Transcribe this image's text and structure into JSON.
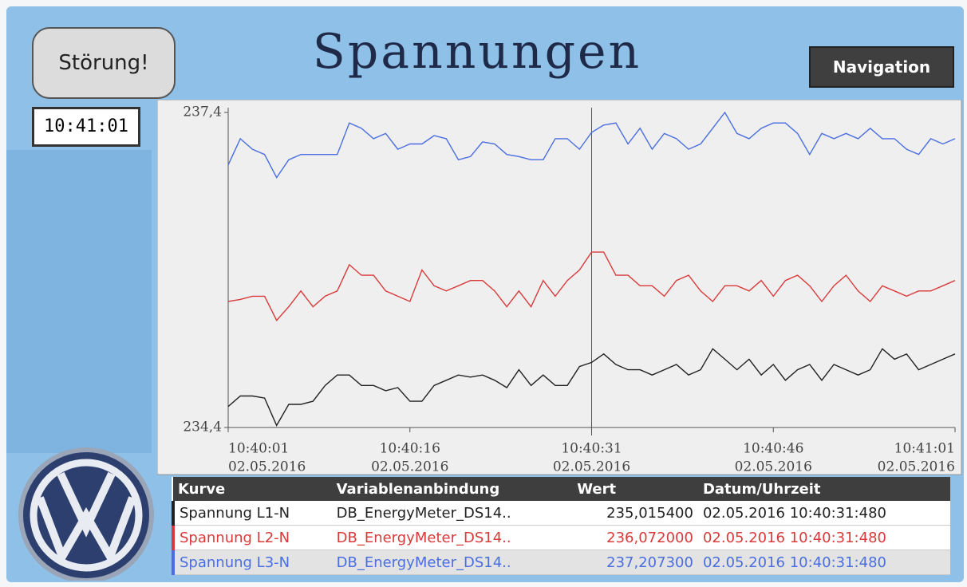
{
  "header": {
    "alarm_button": "Störung!",
    "title": "Spannungen",
    "nav_button": "Navigation",
    "clock": "10:41:01"
  },
  "chart_data": {
    "type": "line",
    "x": [
      "10:40:01",
      "10:40:02",
      "10:40:03",
      "10:40:04",
      "10:40:05",
      "10:40:06",
      "10:40:07",
      "10:40:08",
      "10:40:09",
      "10:40:10",
      "10:40:11",
      "10:40:12",
      "10:40:13",
      "10:40:14",
      "10:40:15",
      "10:40:16",
      "10:40:17",
      "10:40:18",
      "10:40:19",
      "10:40:20",
      "10:40:21",
      "10:40:22",
      "10:40:23",
      "10:40:24",
      "10:40:25",
      "10:40:26",
      "10:40:27",
      "10:40:28",
      "10:40:29",
      "10:40:30",
      "10:40:31",
      "10:40:32",
      "10:40:33",
      "10:40:34",
      "10:40:35",
      "10:40:36",
      "10:40:37",
      "10:40:38",
      "10:40:39",
      "10:40:40",
      "10:40:41",
      "10:40:42",
      "10:40:43",
      "10:40:44",
      "10:40:45",
      "10:40:46",
      "10:40:47",
      "10:40:48",
      "10:40:49",
      "10:40:50",
      "10:40:51",
      "10:40:52",
      "10:40:53",
      "10:40:54",
      "10:40:55",
      "10:40:56",
      "10:40:57",
      "10:40:58",
      "10:40:59",
      "10:41:00",
      "10:41:01"
    ],
    "xticks": [
      "10:40:01",
      "10:40:16",
      "10:40:31",
      "10:40:46",
      "10:41:01"
    ],
    "xtick_dates": [
      "02.05.2016",
      "02.05.2016",
      "02.05.2016",
      "02.05.2016",
      "02.05.2016"
    ],
    "ylim": [
      234.4,
      237.4
    ],
    "yticks": [
      {
        "value": 234.4,
        "label": "234,4"
      },
      {
        "value": 237.4,
        "label": "237,4"
      }
    ],
    "series": [
      {
        "name": "Spannung L1-N",
        "color": "#222222",
        "values": [
          234.6,
          234.7,
          234.7,
          234.68,
          234.42,
          234.62,
          234.62,
          234.65,
          234.8,
          234.9,
          234.9,
          234.8,
          234.8,
          234.75,
          234.78,
          234.65,
          234.65,
          234.8,
          234.85,
          234.9,
          234.88,
          234.9,
          234.85,
          234.78,
          234.95,
          234.8,
          234.9,
          234.8,
          234.8,
          234.98,
          235.02,
          235.1,
          235.0,
          234.95,
          234.95,
          234.9,
          234.95,
          235.0,
          234.9,
          234.95,
          235.15,
          235.05,
          234.95,
          235.05,
          234.9,
          235.0,
          234.85,
          234.95,
          235.0,
          234.85,
          235.0,
          234.95,
          234.9,
          234.95,
          235.15,
          235.05,
          235.1,
          234.95,
          235.0,
          235.05,
          235.1
        ]
      },
      {
        "name": "Spannung L2-N",
        "color": "#d93a3a",
        "values": [
          235.6,
          235.62,
          235.65,
          235.65,
          235.42,
          235.55,
          235.7,
          235.55,
          235.65,
          235.7,
          235.95,
          235.85,
          235.85,
          235.7,
          235.65,
          235.6,
          235.9,
          235.75,
          235.7,
          235.75,
          235.8,
          235.8,
          235.7,
          235.55,
          235.7,
          235.55,
          235.8,
          235.65,
          235.8,
          235.9,
          236.07,
          236.07,
          235.85,
          235.85,
          235.75,
          235.75,
          235.65,
          235.8,
          235.85,
          235.7,
          235.6,
          235.75,
          235.75,
          235.7,
          235.8,
          235.65,
          235.8,
          235.85,
          235.75,
          235.6,
          235.75,
          235.85,
          235.7,
          235.6,
          235.75,
          235.7,
          235.65,
          235.7,
          235.7,
          235.75,
          235.8
        ]
      },
      {
        "name": "Spannung L3-N",
        "color": "#4a6ee0",
        "values": [
          236.9,
          237.15,
          237.05,
          237.0,
          236.78,
          236.95,
          237.0,
          237.0,
          237.0,
          237.0,
          237.3,
          237.25,
          237.15,
          237.2,
          237.05,
          237.1,
          237.1,
          237.18,
          237.15,
          236.95,
          236.98,
          237.12,
          237.1,
          237.0,
          236.98,
          236.95,
          236.95,
          237.15,
          237.15,
          237.05,
          237.21,
          237.28,
          237.3,
          237.1,
          237.25,
          237.05,
          237.2,
          237.15,
          237.05,
          237.1,
          237.25,
          237.4,
          237.2,
          237.15,
          237.25,
          237.3,
          237.3,
          237.2,
          237.0,
          237.2,
          237.15,
          237.2,
          237.15,
          237.25,
          237.15,
          237.15,
          237.05,
          237.0,
          237.15,
          237.1,
          237.15
        ]
      }
    ]
  },
  "table": {
    "headers": [
      "Kurve",
      "Variablenanbindung",
      "Wert",
      "Datum/Uhrzeit"
    ],
    "rows": [
      [
        "DB_EnergyMeter_DS14..",
        "235,015400",
        "02.05.2016 10:40:31:480"
      ],
      [
        "DB_EnergyMeter_DS14..",
        "236,072000",
        "02.05.2016 10:40:31:480"
      ],
      [
        "DB_EnergyMeter_DS14..",
        "237,207300",
        "02.05.2016 10:40:31:480"
      ]
    ]
  }
}
